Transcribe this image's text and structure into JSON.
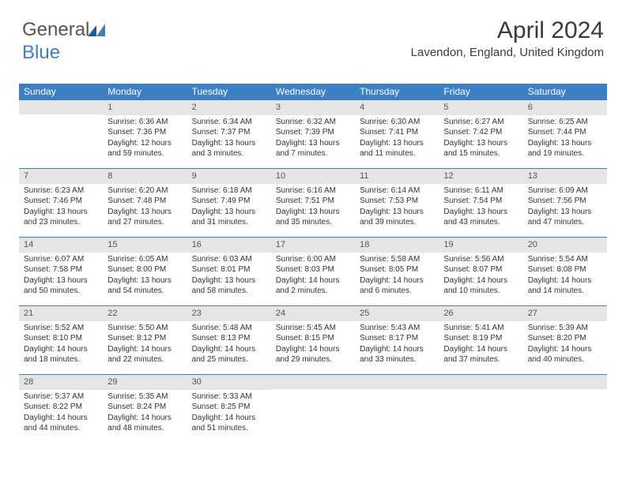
{
  "logo": {
    "part1": "General",
    "part2": "Blue"
  },
  "title": "April 2024",
  "location": "Lavendon, England, United Kingdom",
  "day_headers": [
    "Sunday",
    "Monday",
    "Tuesday",
    "Wednesday",
    "Thursday",
    "Friday",
    "Saturday"
  ],
  "colors": {
    "header_bg": "#3d7fc4",
    "header_text": "#ffffff",
    "daynum_bg": "#e5e5e5",
    "border": "#3d7fc4",
    "text": "#333333"
  },
  "weeks": [
    [
      null,
      {
        "n": "1",
        "sr": "6:36 AM",
        "ss": "7:36 PM",
        "dl": "12 hours and 59 minutes."
      },
      {
        "n": "2",
        "sr": "6:34 AM",
        "ss": "7:37 PM",
        "dl": "13 hours and 3 minutes."
      },
      {
        "n": "3",
        "sr": "6:32 AM",
        "ss": "7:39 PM",
        "dl": "13 hours and 7 minutes."
      },
      {
        "n": "4",
        "sr": "6:30 AM",
        "ss": "7:41 PM",
        "dl": "13 hours and 11 minutes."
      },
      {
        "n": "5",
        "sr": "6:27 AM",
        "ss": "7:42 PM",
        "dl": "13 hours and 15 minutes."
      },
      {
        "n": "6",
        "sr": "6:25 AM",
        "ss": "7:44 PM",
        "dl": "13 hours and 19 minutes."
      }
    ],
    [
      {
        "n": "7",
        "sr": "6:23 AM",
        "ss": "7:46 PM",
        "dl": "13 hours and 23 minutes."
      },
      {
        "n": "8",
        "sr": "6:20 AM",
        "ss": "7:48 PM",
        "dl": "13 hours and 27 minutes."
      },
      {
        "n": "9",
        "sr": "6:18 AM",
        "ss": "7:49 PM",
        "dl": "13 hours and 31 minutes."
      },
      {
        "n": "10",
        "sr": "6:16 AM",
        "ss": "7:51 PM",
        "dl": "13 hours and 35 minutes."
      },
      {
        "n": "11",
        "sr": "6:14 AM",
        "ss": "7:53 PM",
        "dl": "13 hours and 39 minutes."
      },
      {
        "n": "12",
        "sr": "6:11 AM",
        "ss": "7:54 PM",
        "dl": "13 hours and 43 minutes."
      },
      {
        "n": "13",
        "sr": "6:09 AM",
        "ss": "7:56 PM",
        "dl": "13 hours and 47 minutes."
      }
    ],
    [
      {
        "n": "14",
        "sr": "6:07 AM",
        "ss": "7:58 PM",
        "dl": "13 hours and 50 minutes."
      },
      {
        "n": "15",
        "sr": "6:05 AM",
        "ss": "8:00 PM",
        "dl": "13 hours and 54 minutes."
      },
      {
        "n": "16",
        "sr": "6:03 AM",
        "ss": "8:01 PM",
        "dl": "13 hours and 58 minutes."
      },
      {
        "n": "17",
        "sr": "6:00 AM",
        "ss": "8:03 PM",
        "dl": "14 hours and 2 minutes."
      },
      {
        "n": "18",
        "sr": "5:58 AM",
        "ss": "8:05 PM",
        "dl": "14 hours and 6 minutes."
      },
      {
        "n": "19",
        "sr": "5:56 AM",
        "ss": "8:07 PM",
        "dl": "14 hours and 10 minutes."
      },
      {
        "n": "20",
        "sr": "5:54 AM",
        "ss": "8:08 PM",
        "dl": "14 hours and 14 minutes."
      }
    ],
    [
      {
        "n": "21",
        "sr": "5:52 AM",
        "ss": "8:10 PM",
        "dl": "14 hours and 18 minutes."
      },
      {
        "n": "22",
        "sr": "5:50 AM",
        "ss": "8:12 PM",
        "dl": "14 hours and 22 minutes."
      },
      {
        "n": "23",
        "sr": "5:48 AM",
        "ss": "8:13 PM",
        "dl": "14 hours and 25 minutes."
      },
      {
        "n": "24",
        "sr": "5:45 AM",
        "ss": "8:15 PM",
        "dl": "14 hours and 29 minutes."
      },
      {
        "n": "25",
        "sr": "5:43 AM",
        "ss": "8:17 PM",
        "dl": "14 hours and 33 minutes."
      },
      {
        "n": "26",
        "sr": "5:41 AM",
        "ss": "8:19 PM",
        "dl": "14 hours and 37 minutes."
      },
      {
        "n": "27",
        "sr": "5:39 AM",
        "ss": "8:20 PM",
        "dl": "14 hours and 40 minutes."
      }
    ],
    [
      {
        "n": "28",
        "sr": "5:37 AM",
        "ss": "8:22 PM",
        "dl": "14 hours and 44 minutes."
      },
      {
        "n": "29",
        "sr": "5:35 AM",
        "ss": "8:24 PM",
        "dl": "14 hours and 48 minutes."
      },
      {
        "n": "30",
        "sr": "5:33 AM",
        "ss": "8:25 PM",
        "dl": "14 hours and 51 minutes."
      },
      null,
      null,
      null,
      null
    ]
  ],
  "labels": {
    "sunrise": "Sunrise:",
    "sunset": "Sunset:",
    "daylight": "Daylight:"
  }
}
